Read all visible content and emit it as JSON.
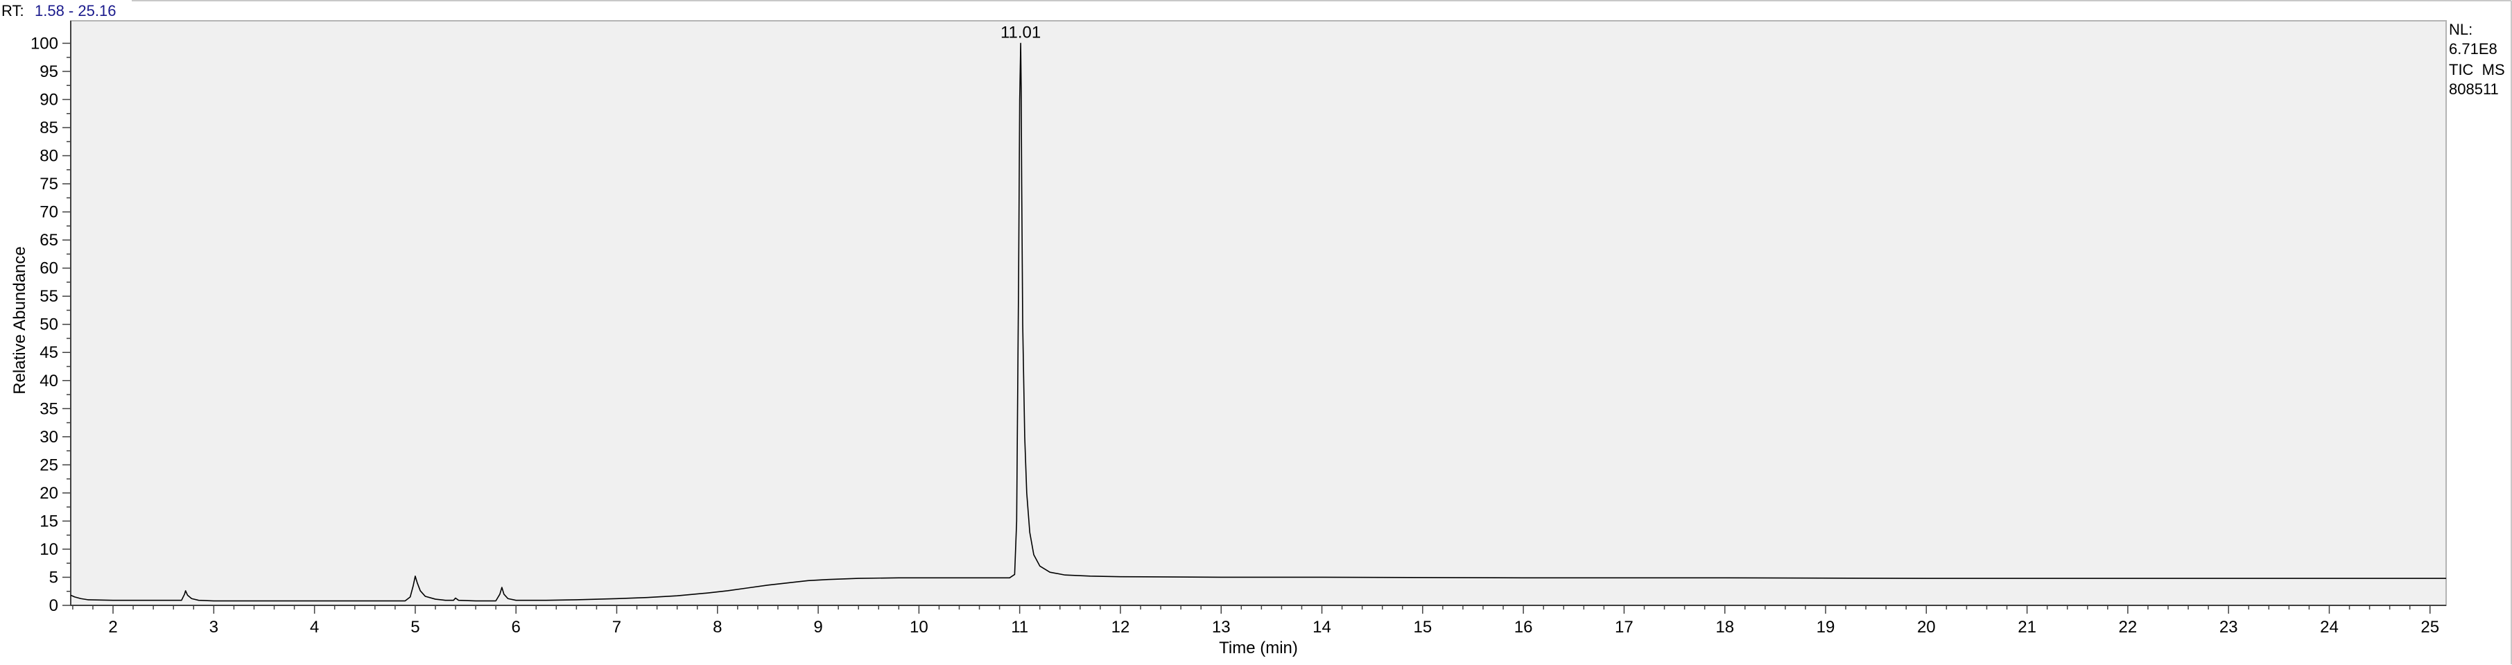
{
  "header": {
    "rt_label": "RT:",
    "rt_range": "1.58 - 25.16"
  },
  "info": {
    "nl_label": "NL:",
    "nl_value": "6.71E8",
    "scan_filter": "TIC  MS",
    "raw_file": "808511"
  },
  "colors": {
    "plot_background": "#f0f0f0",
    "trace": "#000000",
    "rt_range": "#1a1a8c",
    "axis": "#404040",
    "frame": "#b4b4b4"
  },
  "chart_data": {
    "type": "line",
    "title": "",
    "xlabel": "Time (min)",
    "ylabel": "Relative Abundance",
    "xlim": [
      1.58,
      25.16
    ],
    "ylim": [
      0,
      104
    ],
    "grid": false,
    "xticks": [
      2,
      3,
      4,
      5,
      6,
      7,
      8,
      9,
      10,
      11,
      12,
      13,
      14,
      15,
      16,
      17,
      18,
      19,
      20,
      21,
      22,
      23,
      24,
      25
    ],
    "yticks": [
      0,
      5,
      10,
      15,
      20,
      25,
      30,
      35,
      40,
      45,
      50,
      55,
      60,
      65,
      70,
      75,
      80,
      85,
      90,
      95,
      100
    ],
    "series": [
      {
        "points": [
          [
            1.58,
            1.8
          ],
          [
            1.62,
            1.5
          ],
          [
            1.68,
            1.2
          ],
          [
            1.75,
            1.0
          ],
          [
            2.0,
            0.9
          ],
          [
            2.3,
            0.9
          ],
          [
            2.6,
            0.9
          ],
          [
            2.68,
            0.9
          ],
          [
            2.71,
            2.0
          ],
          [
            2.72,
            2.6
          ],
          [
            2.74,
            1.8
          ],
          [
            2.78,
            1.2
          ],
          [
            2.85,
            0.9
          ],
          [
            3.0,
            0.8
          ],
          [
            3.5,
            0.8
          ],
          [
            4.0,
            0.8
          ],
          [
            4.5,
            0.8
          ],
          [
            4.9,
            0.8
          ],
          [
            4.95,
            1.5
          ],
          [
            4.98,
            3.5
          ],
          [
            5.0,
            5.2
          ],
          [
            5.02,
            4.0
          ],
          [
            5.05,
            2.6
          ],
          [
            5.1,
            1.6
          ],
          [
            5.2,
            1.1
          ],
          [
            5.3,
            0.9
          ],
          [
            5.38,
            0.9
          ],
          [
            5.4,
            1.3
          ],
          [
            5.43,
            0.9
          ],
          [
            5.6,
            0.8
          ],
          [
            5.8,
            0.8
          ],
          [
            5.84,
            2.0
          ],
          [
            5.86,
            3.2
          ],
          [
            5.88,
            2.0
          ],
          [
            5.92,
            1.2
          ],
          [
            6.0,
            0.9
          ],
          [
            6.3,
            0.9
          ],
          [
            6.6,
            1.0
          ],
          [
            7.0,
            1.2
          ],
          [
            7.3,
            1.4
          ],
          [
            7.6,
            1.7
          ],
          [
            7.9,
            2.2
          ],
          [
            8.1,
            2.6
          ],
          [
            8.3,
            3.1
          ],
          [
            8.5,
            3.6
          ],
          [
            8.7,
            4.0
          ],
          [
            8.9,
            4.4
          ],
          [
            9.1,
            4.6
          ],
          [
            9.4,
            4.8
          ],
          [
            9.8,
            4.9
          ],
          [
            10.2,
            4.9
          ],
          [
            10.6,
            4.9
          ],
          [
            10.9,
            4.9
          ],
          [
            10.95,
            5.5
          ],
          [
            10.97,
            15
          ],
          [
            10.99,
            60
          ],
          [
            11.0,
            90
          ],
          [
            11.01,
            100
          ],
          [
            11.015,
            92
          ],
          [
            11.02,
            75
          ],
          [
            11.03,
            50
          ],
          [
            11.05,
            30
          ],
          [
            11.07,
            20
          ],
          [
            11.1,
            13
          ],
          [
            11.14,
            9
          ],
          [
            11.2,
            7
          ],
          [
            11.3,
            5.9
          ],
          [
            11.45,
            5.4
          ],
          [
            11.7,
            5.2
          ],
          [
            12.0,
            5.1
          ],
          [
            13.0,
            5.0
          ],
          [
            14.0,
            5.0
          ],
          [
            16.0,
            4.9
          ],
          [
            18.0,
            4.9
          ],
          [
            20.0,
            4.8
          ],
          [
            22.0,
            4.8
          ],
          [
            24.0,
            4.8
          ],
          [
            25.16,
            4.8
          ]
        ]
      }
    ],
    "annotations": [
      {
        "x": 11.01,
        "y": 100,
        "text": "11.01"
      }
    ]
  }
}
